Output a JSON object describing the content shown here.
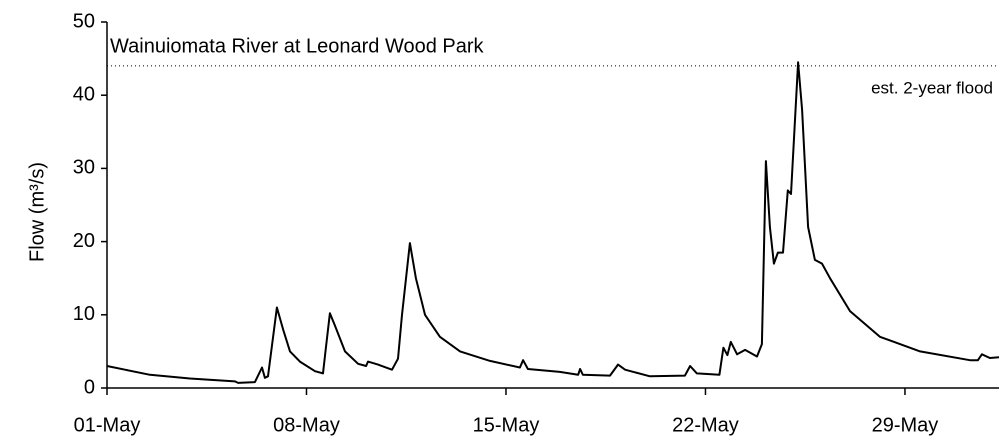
{
  "chart_data": {
    "type": "line",
    "title": "Wainuiomata River at Leonard Wood Park",
    "y_label": "Flow (m³/s)",
    "threshold": 44,
    "threshold_label": "est. 2-year flood",
    "xlim": [
      1,
      32.3
    ],
    "xticks": [
      {
        "value": 1,
        "label": "01-May"
      },
      {
        "value": 8,
        "label": "08-May"
      },
      {
        "value": 15,
        "label": "15-May"
      },
      {
        "value": 22,
        "label": "22-May"
      },
      {
        "value": 29,
        "label": "29-May"
      }
    ],
    "ylim": [
      0,
      50
    ],
    "yticks": [
      0,
      10,
      20,
      30,
      40,
      50
    ],
    "color": "#000000",
    "x": [
      1.0,
      1.63,
      2.51,
      3.91,
      5.49,
      5.6,
      6.19,
      6.44,
      6.54,
      6.65,
      6.96,
      7.18,
      7.42,
      7.77,
      8.3,
      8.58,
      8.68,
      8.82,
      9.0,
      9.35,
      9.81,
      10.09,
      10.16,
      10.51,
      11.0,
      11.21,
      11.35,
      11.63,
      11.84,
      12.16,
      12.68,
      13.39,
      14.44,
      15.49,
      15.6,
      15.77,
      16.89,
      17.53,
      17.6,
      17.7,
      18.65,
      18.93,
      19.18,
      20.05,
      21.28,
      21.46,
      21.7,
      22.49,
      22.63,
      22.77,
      22.89,
      23.11,
      23.39,
      23.81,
      23.98,
      24.12,
      24.26,
      24.4,
      24.54,
      24.72,
      24.89,
      25.0,
      25.25,
      25.39,
      25.6,
      25.84,
      26.09,
      26.37,
      27.07,
      28.12,
      29.53,
      31.28,
      31.56,
      31.7,
      31.98,
      32.3
    ],
    "values": [
      3.0,
      2.5,
      1.8,
      1.3,
      0.9,
      0.7,
      0.8,
      2.8,
      1.4,
      1.6,
      11.0,
      8.0,
      5.0,
      3.6,
      2.3,
      2.0,
      5.5,
      10.2,
      8.5,
      5.0,
      3.3,
      3.0,
      3.6,
      3.2,
      2.5,
      4.0,
      10,
      19.8,
      15,
      10,
      7,
      5,
      3.7,
      2.8,
      3.8,
      2.6,
      2.2,
      1.8,
      2.6,
      1.8,
      1.7,
      3.2,
      2.5,
      1.6,
      1.7,
      3.0,
      2.0,
      1.8,
      5.5,
      4.5,
      6.3,
      4.6,
      5.2,
      4.3,
      6.0,
      31,
      22,
      17,
      18.5,
      18.5,
      27,
      26.5,
      44.5,
      38,
      22,
      17.5,
      17,
      15,
      10.5,
      7,
      5,
      3.8,
      3.8,
      4.6,
      4.1,
      4.2
    ]
  }
}
